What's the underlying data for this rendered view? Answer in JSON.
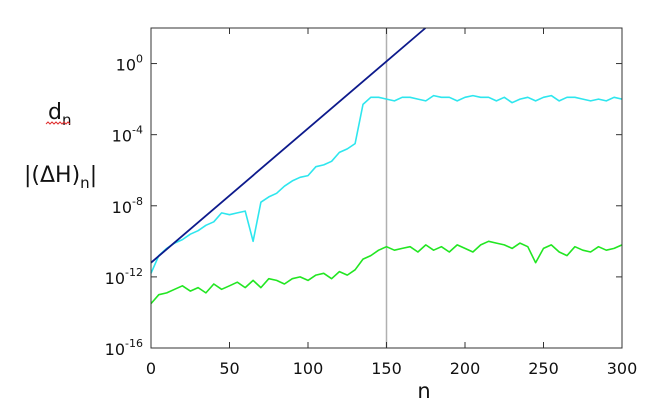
{
  "chart_data": {
    "type": "line",
    "title": "",
    "xlabel": "n",
    "ylabel_lines": [
      {
        "main": "d",
        "sub": "n"
      },
      {
        "prefix": "|(ΔH)",
        "sub": "n",
        "suffix": "|"
      }
    ],
    "xlim": [
      0,
      300
    ],
    "ylim_log10": [
      -16,
      2
    ],
    "y_scale": "log",
    "grid": false,
    "x_ticks": [
      0,
      50,
      100,
      150,
      200,
      250,
      300
    ],
    "x_tick_labels": [
      "0",
      "50",
      "100",
      "150",
      "200",
      "250",
      "300"
    ],
    "y_ticks_log10": [
      0,
      -4,
      -8,
      -12,
      -16
    ],
    "y_tick_labels": [
      {
        "base": "10",
        "exp": "0"
      },
      {
        "base": "10",
        "exp": "-4"
      },
      {
        "base": "10",
        "exp": "-8"
      },
      {
        "base": "10",
        "exp": "-12"
      },
      {
        "base": "10",
        "exp": "-16"
      }
    ],
    "vertical_marker_x": 150,
    "reference_line": {
      "color": "#0d1a8c",
      "log10_at_x0": -11.2,
      "slope_log10_per_n": 0.0755
    },
    "series": [
      {
        "color": "#2ee6ee",
        "x_step": 5,
        "log10_values": [
          -11.8,
          -10.8,
          -10.4,
          -10.1,
          -9.9,
          -9.6,
          -9.4,
          -9.1,
          -8.9,
          -8.4,
          -8.5,
          -8.4,
          -8.3,
          -10.0,
          -7.8,
          -7.5,
          -7.3,
          -6.9,
          -6.6,
          -6.4,
          -6.3,
          -5.8,
          -5.7,
          -5.5,
          -5.0,
          -4.8,
          -4.5,
          -2.3,
          -1.9,
          -1.9,
          -2.0,
          -2.1,
          -1.9,
          -1.9,
          -2.0,
          -2.1,
          -1.8,
          -1.9,
          -1.9,
          -2.1,
          -1.9,
          -1.8,
          -1.9,
          -1.9,
          -2.1,
          -1.9,
          -2.2,
          -2.0,
          -1.9,
          -2.1,
          -1.9,
          -1.8,
          -2.1,
          -1.9,
          -1.9,
          -2.0,
          -2.1,
          -2.0,
          -2.1,
          -1.9,
          -2.0
        ]
      },
      {
        "color": "#22e622",
        "x_step": 5,
        "log10_values": [
          -13.5,
          -13.0,
          -12.9,
          -12.7,
          -12.5,
          -12.8,
          -12.6,
          -12.9,
          -12.4,
          -12.7,
          -12.5,
          -12.3,
          -12.6,
          -12.2,
          -12.6,
          -12.1,
          -12.2,
          -12.4,
          -12.1,
          -12.0,
          -12.2,
          -11.9,
          -11.8,
          -12.1,
          -11.7,
          -11.9,
          -11.6,
          -11.0,
          -10.8,
          -10.5,
          -10.3,
          -10.5,
          -10.4,
          -10.3,
          -10.6,
          -10.2,
          -10.5,
          -10.3,
          -10.6,
          -10.2,
          -10.4,
          -10.6,
          -10.2,
          -10.0,
          -10.1,
          -10.2,
          -10.4,
          -10.1,
          -10.3,
          -11.2,
          -10.4,
          -10.2,
          -10.6,
          -10.8,
          -10.3,
          -10.5,
          -10.6,
          -10.3,
          -10.5,
          -10.4,
          -10.2
        ]
      }
    ]
  }
}
